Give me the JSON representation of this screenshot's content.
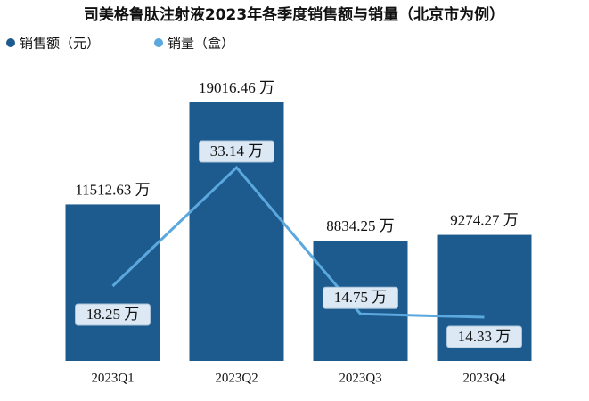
{
  "chart_data": {
    "type": "bar",
    "title": "司美格鲁肽注射液2023年各季度销售额与销量（北京市为例）",
    "categories": [
      "2023Q1",
      "2023Q2",
      "2023Q3",
      "2023Q4"
    ],
    "series": [
      {
        "name": "销售额（元）",
        "type": "bar",
        "color": "#1d5b8f",
        "values": [
          11512.63,
          19016.46,
          8834.25,
          9274.27
        ],
        "value_labels": [
          "11512.63 万",
          "19016.46 万",
          "8834.25 万",
          "9274.27 万"
        ]
      },
      {
        "name": "销量（盒）",
        "type": "line",
        "axis": "y2",
        "color": "#5aa8de",
        "values": [
          18.25,
          33.14,
          14.75,
          14.33
        ],
        "value_labels": [
          "18.25 万",
          "33.14 万",
          "14.75 万",
          "14.33 万"
        ]
      }
    ]
  }
}
